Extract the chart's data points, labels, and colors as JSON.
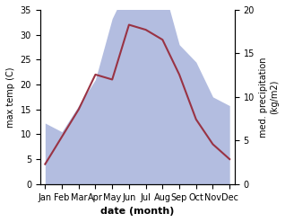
{
  "months": [
    "Jan",
    "Feb",
    "Mar",
    "Apr",
    "May",
    "Jun",
    "Jul",
    "Aug",
    "Sep",
    "Oct",
    "Nov",
    "Dec"
  ],
  "temperature": [
    4,
    9.5,
    15,
    22,
    21,
    32,
    31,
    29,
    22,
    13,
    8,
    5
  ],
  "precipitation": [
    7,
    6,
    9,
    12,
    19,
    23,
    22,
    23,
    16,
    14,
    10,
    9
  ],
  "temp_color": "#993344",
  "precip_color_fill": "#b3bde0",
  "temp_ylim": [
    0,
    35
  ],
  "precip_ylim": [
    0,
    20
  ],
  "temp_yticks": [
    0,
    5,
    10,
    15,
    20,
    25,
    30,
    35
  ],
  "precip_yticks": [
    0,
    5,
    10,
    15,
    20
  ],
  "xlabel": "date (month)",
  "ylabel_left": "max temp (C)",
  "ylabel_right": "med. precipitation\n(kg/m2)",
  "title": ""
}
